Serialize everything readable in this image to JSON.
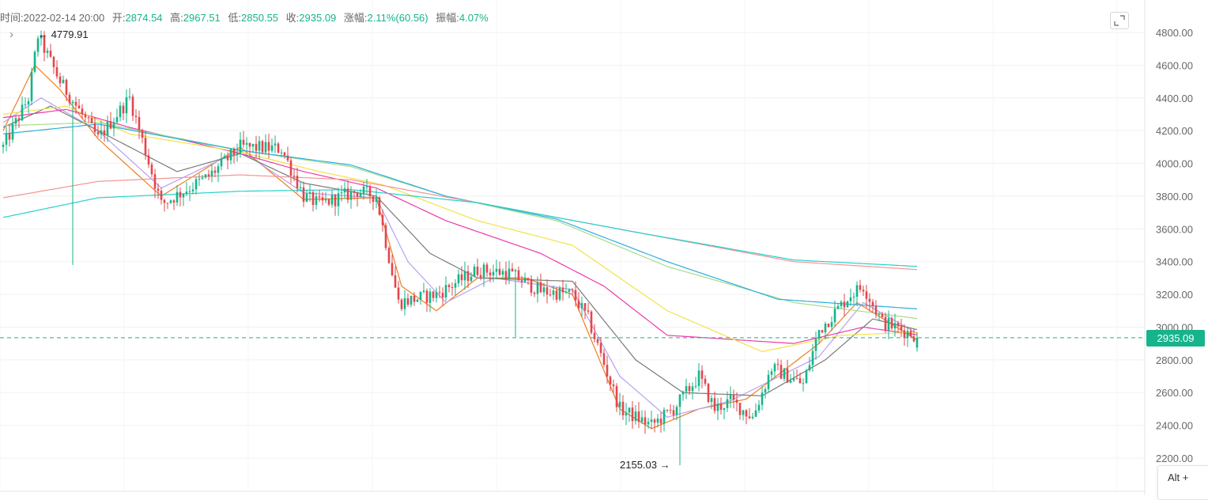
{
  "info_bar": {
    "time_label": "时间:",
    "time_value": "2022-02-14 20:00",
    "open_label": "开:",
    "open_value": "2874.54",
    "high_label": "高:",
    "high_value": "2967.51",
    "low_label": "低:",
    "low_value": "2850.55",
    "close_label": "收:",
    "close_value": "2935.09",
    "change_label": "涨幅:",
    "change_value": "2.11%(60.56)",
    "amp_label": "振幅:",
    "amp_value": "4.07%"
  },
  "annotations": {
    "high_text": "← 4779.91",
    "low_text": "2155.03 →"
  },
  "current_price": "2935.09",
  "alt_hint": "Alt +",
  "colors": {
    "up": "#16b48a",
    "down": "#e2474d",
    "price_line": "#16b48a"
  },
  "icons": {
    "expand": "expand-icon",
    "collapse": "chevron-right-icon"
  },
  "chart_data": {
    "type": "candlestick",
    "ylim": [
      2100,
      4900
    ],
    "y_ticks": [
      "4800.00",
      "4600.00",
      "4400.00",
      "4200.00",
      "4000.00",
      "3800.00",
      "3600.00",
      "3400.00",
      "3200.00",
      "3000.00",
      "2800.00",
      "2600.00",
      "2400.00",
      "2200.00"
    ],
    "y_tick_values": [
      4800,
      4600,
      4400,
      4200,
      4000,
      3800,
      3600,
      3400,
      3200,
      3000,
      2800,
      2600,
      2400,
      2200
    ],
    "grid": true,
    "candle_count": 290,
    "anchors": [
      [
        0,
        4100
      ],
      [
        8,
        4400
      ],
      [
        11,
        4780
      ],
      [
        18,
        4500
      ],
      [
        30,
        4150
      ],
      [
        40,
        4400
      ],
      [
        50,
        3750
      ],
      [
        65,
        3920
      ],
      [
        75,
        4100
      ],
      [
        88,
        4090
      ],
      [
        95,
        3800
      ],
      [
        100,
        3750
      ],
      [
        112,
        3830
      ],
      [
        118,
        3800
      ],
      [
        125,
        3150
      ],
      [
        137,
        3200
      ],
      [
        150,
        3350
      ],
      [
        160,
        3330
      ],
      [
        170,
        3220
      ],
      [
        180,
        3200
      ],
      [
        185,
        3050
      ],
      [
        195,
        2500
      ],
      [
        205,
        2400
      ],
      [
        212,
        2500
      ],
      [
        220,
        2700
      ],
      [
        225,
        2500
      ],
      [
        230,
        2550
      ],
      [
        237,
        2450
      ],
      [
        243,
        2750
      ],
      [
        253,
        2650
      ],
      [
        258,
        2980
      ],
      [
        268,
        3200
      ],
      [
        272,
        3250
      ],
      [
        278,
        3030
      ],
      [
        290,
        2940
      ]
    ],
    "ohlc_last": {
      "open": 2874.54,
      "high": 2967.51,
      "low": 2850.55,
      "close": 2935.09
    },
    "high_point": 4779.91,
    "low_point": 2155.03,
    "ma_series": [
      {
        "color": "#f07d1f",
        "anchors": [
          [
            0,
            4200
          ],
          [
            10,
            4600
          ],
          [
            18,
            4450
          ],
          [
            30,
            4150
          ],
          [
            50,
            3800
          ],
          [
            75,
            4100
          ],
          [
            95,
            3780
          ],
          [
            118,
            3790
          ],
          [
            126,
            3250
          ],
          [
            137,
            3100
          ],
          [
            150,
            3300
          ],
          [
            165,
            3300
          ],
          [
            180,
            3200
          ],
          [
            195,
            2500
          ],
          [
            205,
            2380
          ],
          [
            220,
            2500
          ],
          [
            235,
            2560
          ],
          [
            258,
            2900
          ],
          [
            270,
            3150
          ],
          [
            290,
            2910
          ]
        ]
      },
      {
        "color": "#b9a1ef",
        "anchors": [
          [
            0,
            4250
          ],
          [
            12,
            4400
          ],
          [
            30,
            4200
          ],
          [
            50,
            3850
          ],
          [
            75,
            4080
          ],
          [
            95,
            3820
          ],
          [
            118,
            3790
          ],
          [
            128,
            3400
          ],
          [
            140,
            3150
          ],
          [
            155,
            3300
          ],
          [
            180,
            3230
          ],
          [
            195,
            2700
          ],
          [
            210,
            2450
          ],
          [
            230,
            2550
          ],
          [
            258,
            2820
          ],
          [
            272,
            3150
          ],
          [
            290,
            2950
          ]
        ]
      },
      {
        "color": "#7a7a7a",
        "anchors": [
          [
            0,
            4220
          ],
          [
            15,
            4350
          ],
          [
            35,
            4150
          ],
          [
            55,
            3950
          ],
          [
            75,
            4060
          ],
          [
            95,
            3880
          ],
          [
            118,
            3800
          ],
          [
            135,
            3450
          ],
          [
            150,
            3300
          ],
          [
            180,
            3280
          ],
          [
            200,
            2800
          ],
          [
            215,
            2600
          ],
          [
            240,
            2580
          ],
          [
            260,
            2800
          ],
          [
            275,
            3050
          ],
          [
            290,
            2980
          ]
        ]
      },
      {
        "color": "#ee3aaa",
        "anchors": [
          [
            0,
            4280
          ],
          [
            20,
            4330
          ],
          [
            40,
            4220
          ],
          [
            75,
            4060
          ],
          [
            95,
            3950
          ],
          [
            118,
            3850
          ],
          [
            140,
            3650
          ],
          [
            170,
            3450
          ],
          [
            190,
            3250
          ],
          [
            210,
            2950
          ],
          [
            250,
            2900
          ],
          [
            272,
            3000
          ],
          [
            290,
            2950
          ]
        ]
      },
      {
        "color": "#f2e24a",
        "anchors": [
          [
            0,
            4300
          ],
          [
            20,
            4350
          ],
          [
            40,
            4180
          ],
          [
            75,
            4070
          ],
          [
            100,
            3950
          ],
          [
            120,
            3870
          ],
          [
            150,
            3650
          ],
          [
            180,
            3500
          ],
          [
            210,
            3100
          ],
          [
            240,
            2850
          ],
          [
            265,
            2950
          ],
          [
            290,
            2970
          ]
        ]
      },
      {
        "color": "#a6dc8c",
        "anchors": [
          [
            0,
            4230
          ],
          [
            30,
            4250
          ],
          [
            75,
            4080
          ],
          [
            110,
            3980
          ],
          [
            140,
            3800
          ],
          [
            175,
            3650
          ],
          [
            210,
            3370
          ],
          [
            250,
            3150
          ],
          [
            290,
            3050
          ]
        ]
      },
      {
        "color": "#29aee0",
        "anchors": [
          [
            0,
            4180
          ],
          [
            30,
            4240
          ],
          [
            75,
            4080
          ],
          [
            110,
            3990
          ],
          [
            140,
            3800
          ],
          [
            175,
            3660
          ],
          [
            210,
            3400
          ],
          [
            245,
            3170
          ],
          [
            290,
            3110
          ]
        ]
      },
      {
        "color": "#f39595",
        "anchors": [
          [
            0,
            3790
          ],
          [
            30,
            3890
          ],
          [
            75,
            3930
          ],
          [
            110,
            3900
          ],
          [
            150,
            3760
          ],
          [
            200,
            3580
          ],
          [
            250,
            3400
          ],
          [
            290,
            3350
          ]
        ]
      },
      {
        "color": "#26d2cc",
        "anchors": [
          [
            0,
            3670
          ],
          [
            30,
            3790
          ],
          [
            75,
            3830
          ],
          [
            110,
            3840
          ],
          [
            150,
            3760
          ],
          [
            200,
            3580
          ],
          [
            250,
            3410
          ],
          [
            290,
            3370
          ]
        ]
      }
    ]
  }
}
